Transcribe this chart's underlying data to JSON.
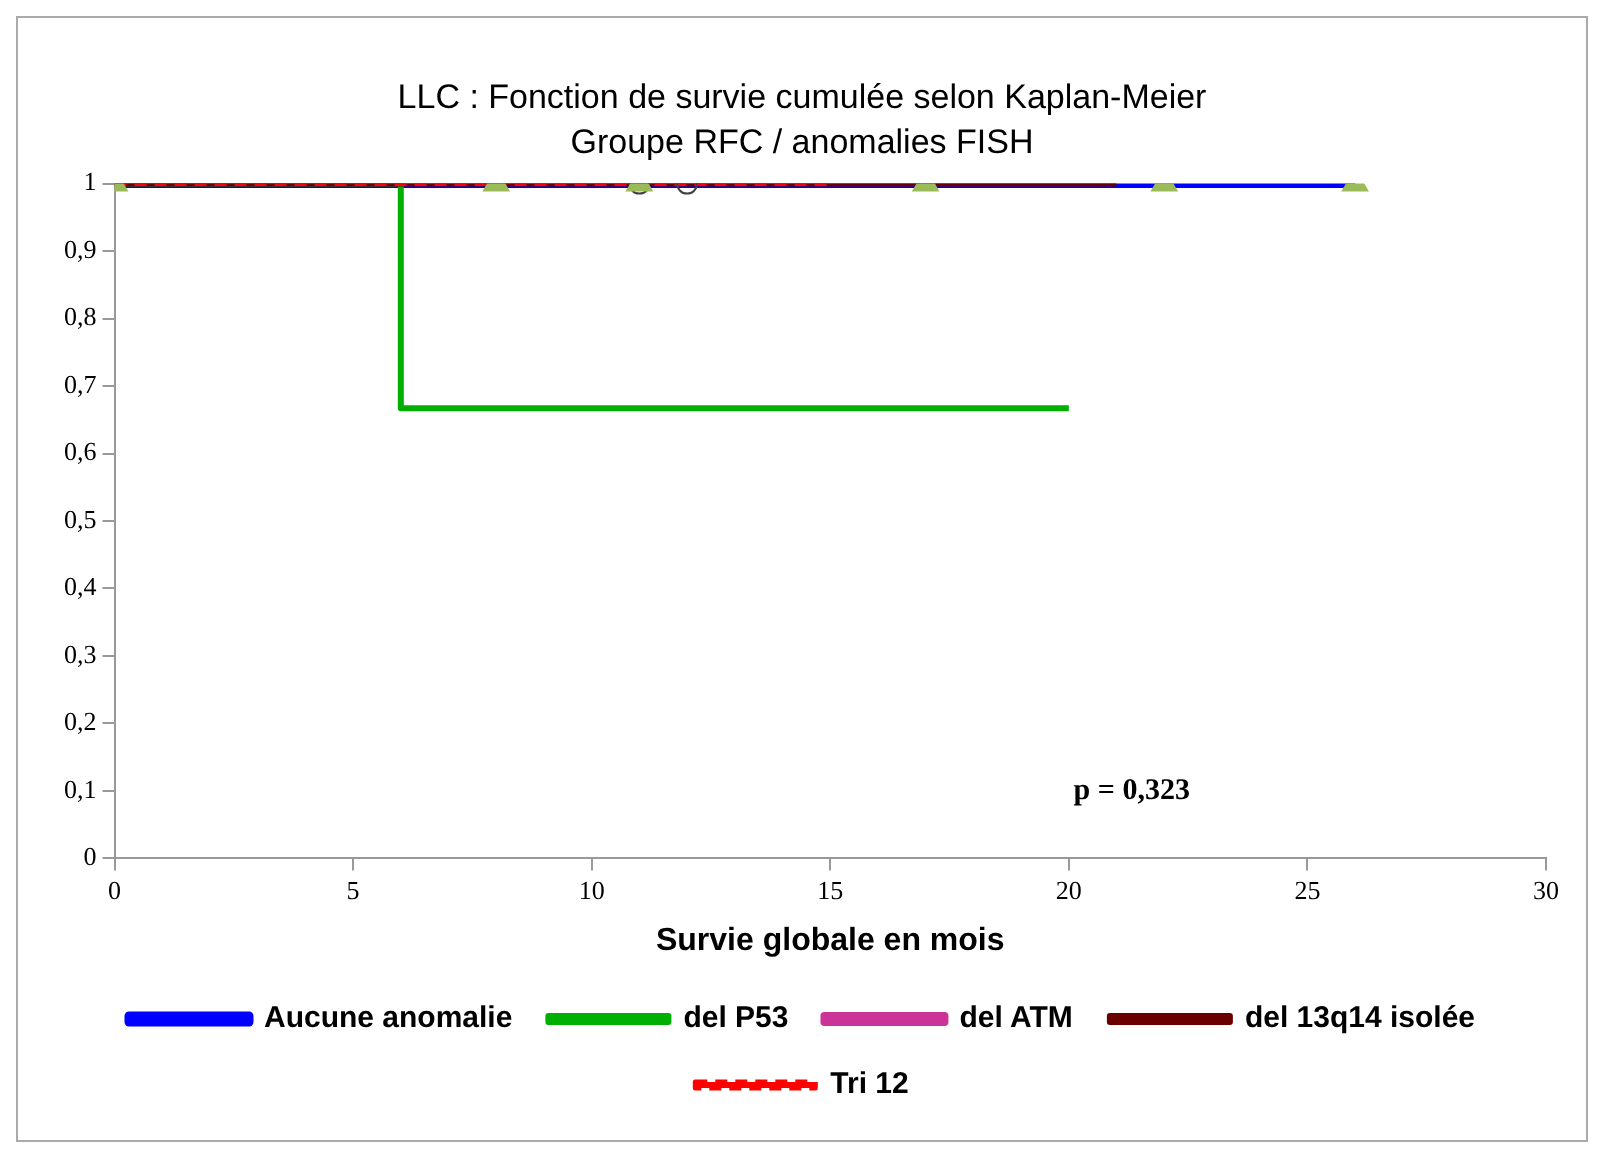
{
  "chart_data": {
    "type": "step",
    "title": "LLC : Fonction de survie cumulée selon Kaplan-Meier",
    "subtitle": "Groupe RFC / anomalies FISH",
    "xlabel": "Survie globale en mois",
    "xlim": [
      0,
      30
    ],
    "xticks": [
      0,
      5,
      10,
      15,
      20,
      25,
      30
    ],
    "ylim": [
      0,
      1
    ],
    "yticks": [
      0,
      {
        "value": 0.1,
        "label": "0,1"
      },
      {
        "value": 0.2,
        "label": "0,2"
      },
      {
        "value": 0.3,
        "label": "0,3"
      },
      {
        "value": 0.4,
        "label": "0,4"
      },
      {
        "value": 0.5,
        "label": "0,5"
      },
      {
        "value": 0.6,
        "label": "0,6"
      },
      {
        "value": 0.7,
        "label": "0,7"
      },
      {
        "value": 0.8,
        "label": "0,8"
      },
      {
        "value": 0.9,
        "label": "0,9"
      },
      1
    ],
    "grid": false,
    "legend": "bottom",
    "annotations": [
      "p = 0,323"
    ],
    "series": [
      {
        "name": "Aucune anomalie",
        "color": "#0000ff",
        "x": [
          0,
          26
        ],
        "values": [
          1,
          1
        ]
      },
      {
        "name": "del P53",
        "color": "#00b000",
        "x": [
          0,
          6,
          20
        ],
        "values": [
          1,
          0.667,
          0.667
        ]
      },
      {
        "name": "del ATM",
        "color": "#cc3399"
      },
      {
        "name": "del 13q14 isolée",
        "color": "#6b0000",
        "x": [
          0,
          21
        ],
        "values": [
          1,
          1
        ]
      },
      {
        "name": "Tri 12",
        "color": "#ff0000",
        "line_style": "dashed",
        "x": [
          0,
          15
        ],
        "values": [
          1,
          1
        ]
      },
      {
        "type": "scatter",
        "marker": "triangle",
        "color": "#9bbb59",
        "x": [
          0,
          8,
          11,
          17,
          22,
          26
        ],
        "values": [
          1,
          1,
          1,
          1,
          1,
          1
        ]
      },
      {
        "type": "scatter",
        "marker": "circle",
        "color": "#404040",
        "x": [
          11,
          12
        ],
        "values": [
          1,
          1
        ]
      }
    ]
  }
}
